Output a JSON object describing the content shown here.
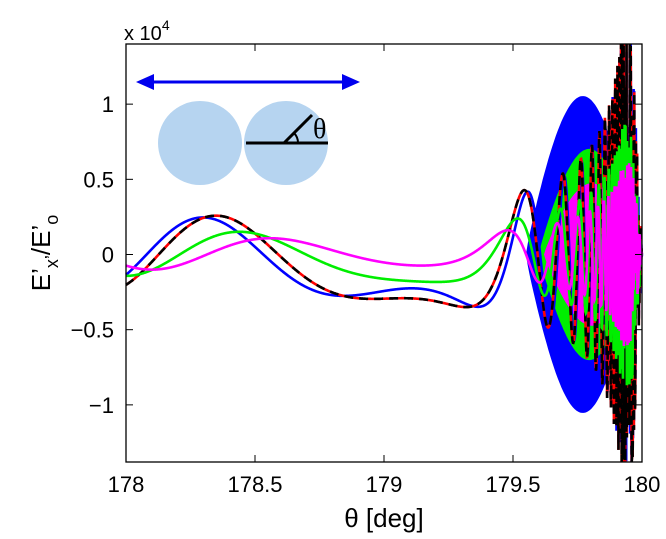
{
  "chart_data": {
    "type": "line",
    "xlabel": "θ [deg]",
    "ylabel": {
      "main": "E’",
      "sub1": "x’",
      "mid": "/E’",
      "sub2": "o"
    },
    "y_multiplier": {
      "prefix": "x 10",
      "exponent": "4"
    },
    "xlim": [
      178,
      180
    ],
    "ylim": [
      -13800,
      14000
    ],
    "x_ticks": [
      178,
      178.5,
      179,
      179.5,
      180
    ],
    "x_tick_labels": [
      "178",
      "178.5",
      "179",
      "179.5",
      "180"
    ],
    "y_ticks": [
      -10000,
      -5000,
      0,
      5000,
      10000
    ],
    "y_tick_labels": [
      "−1",
      "−0.5",
      "0",
      "0.5",
      "1"
    ],
    "grid": false,
    "inset": {
      "angle_symbol": "θ",
      "arrow": "double-headed horizontal",
      "spheres": 2
    },
    "series": [
      {
        "color": "#0000ff",
        "dash": "",
        "phase_shift": 0.0,
        "amp_scale": 1.0,
        "start_frac": 0.0,
        "fill_start": 179.55,
        "fill_amp": 13800,
        "fill_color": "#0000ff"
      },
      {
        "color": "#ff0000",
        "dash": "",
        "phase_shift": 0.35,
        "amp_scale": 1.04,
        "start_frac": 0.0,
        "fill_start": null
      },
      {
        "color": "#000000",
        "dash": "9,6",
        "phase_shift": 0.35,
        "amp_scale": 1.04,
        "start_frac": 0.0,
        "fill_start": null
      },
      {
        "color": "#00ee00",
        "dash": "",
        "phase_shift": 0.95,
        "amp_scale": 0.6,
        "start_frac": 0.0,
        "fill_start": 179.6,
        "fill_amp": 9200,
        "fill_color": "#00ee00"
      },
      {
        "color": "#ff00ff",
        "dash": "",
        "phase_shift": 1.7,
        "amp_scale": 0.42,
        "start_frac": 0.0,
        "fill_start": 179.62,
        "fill_amp": 6200,
        "fill_color": "#ff00ff"
      }
    ]
  }
}
